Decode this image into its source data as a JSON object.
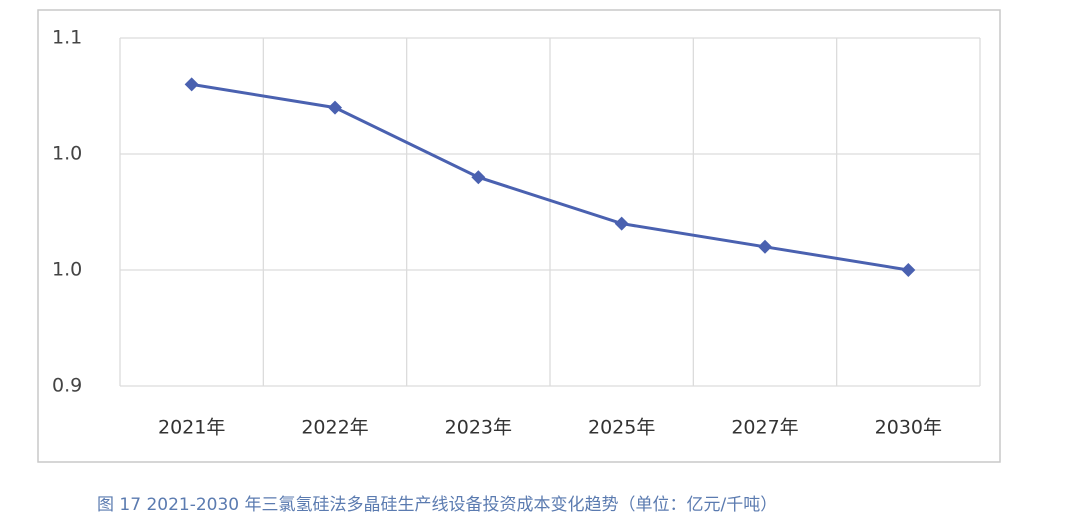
{
  "chart_data": {
    "type": "line",
    "caption": "图 17   2021-2030 年三氯氢硅法多晶硅生产线设备投资成本变化趋势（单位：亿元/千吨）",
    "categories": [
      "2021年",
      "2022年",
      "2023年",
      "2025年",
      "2027年",
      "2030年"
    ],
    "values": [
      1.03,
      1.02,
      0.99,
      0.97,
      0.96,
      0.95
    ],
    "color": "#4a61b0",
    "ylim": [
      0.9,
      1.05
    ],
    "yticks": [
      {
        "value": 0.9,
        "label": "0.9"
      },
      {
        "value": 0.95,
        "label": "1.0"
      },
      {
        "value": 1.0,
        "label": "1.0"
      },
      {
        "value": 1.05,
        "label": "1.1"
      }
    ],
    "grid": true
  }
}
